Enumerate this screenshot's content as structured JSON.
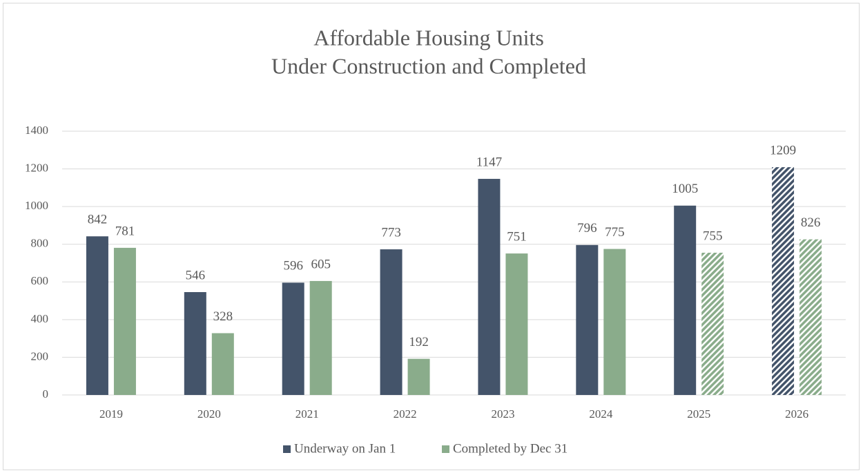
{
  "chart_data": {
    "type": "bar",
    "title": [
      "Affordable Housing Units",
      "Under Construction and Completed"
    ],
    "categories": [
      "2019",
      "2020",
      "2021",
      "2022",
      "2023",
      "2024",
      "2025",
      "2026"
    ],
    "series": [
      {
        "name": "Underway on Jan 1",
        "color": "#44546a",
        "values": [
          842,
          546,
          596,
          773,
          1147,
          796,
          1005,
          1209
        ],
        "hatched": [
          false,
          false,
          false,
          false,
          false,
          false,
          false,
          true
        ]
      },
      {
        "name": "Completed by Dec 31",
        "color": "#8aac8b",
        "values": [
          781,
          328,
          605,
          192,
          751,
          775,
          755,
          826
        ],
        "hatched": [
          false,
          false,
          false,
          false,
          false,
          false,
          true,
          true
        ]
      }
    ],
    "ylim": [
      0,
      1400
    ],
    "yticks": [
      0,
      200,
      400,
      600,
      800,
      1000,
      1200,
      1400
    ],
    "grid": true,
    "legend": "bottom"
  }
}
